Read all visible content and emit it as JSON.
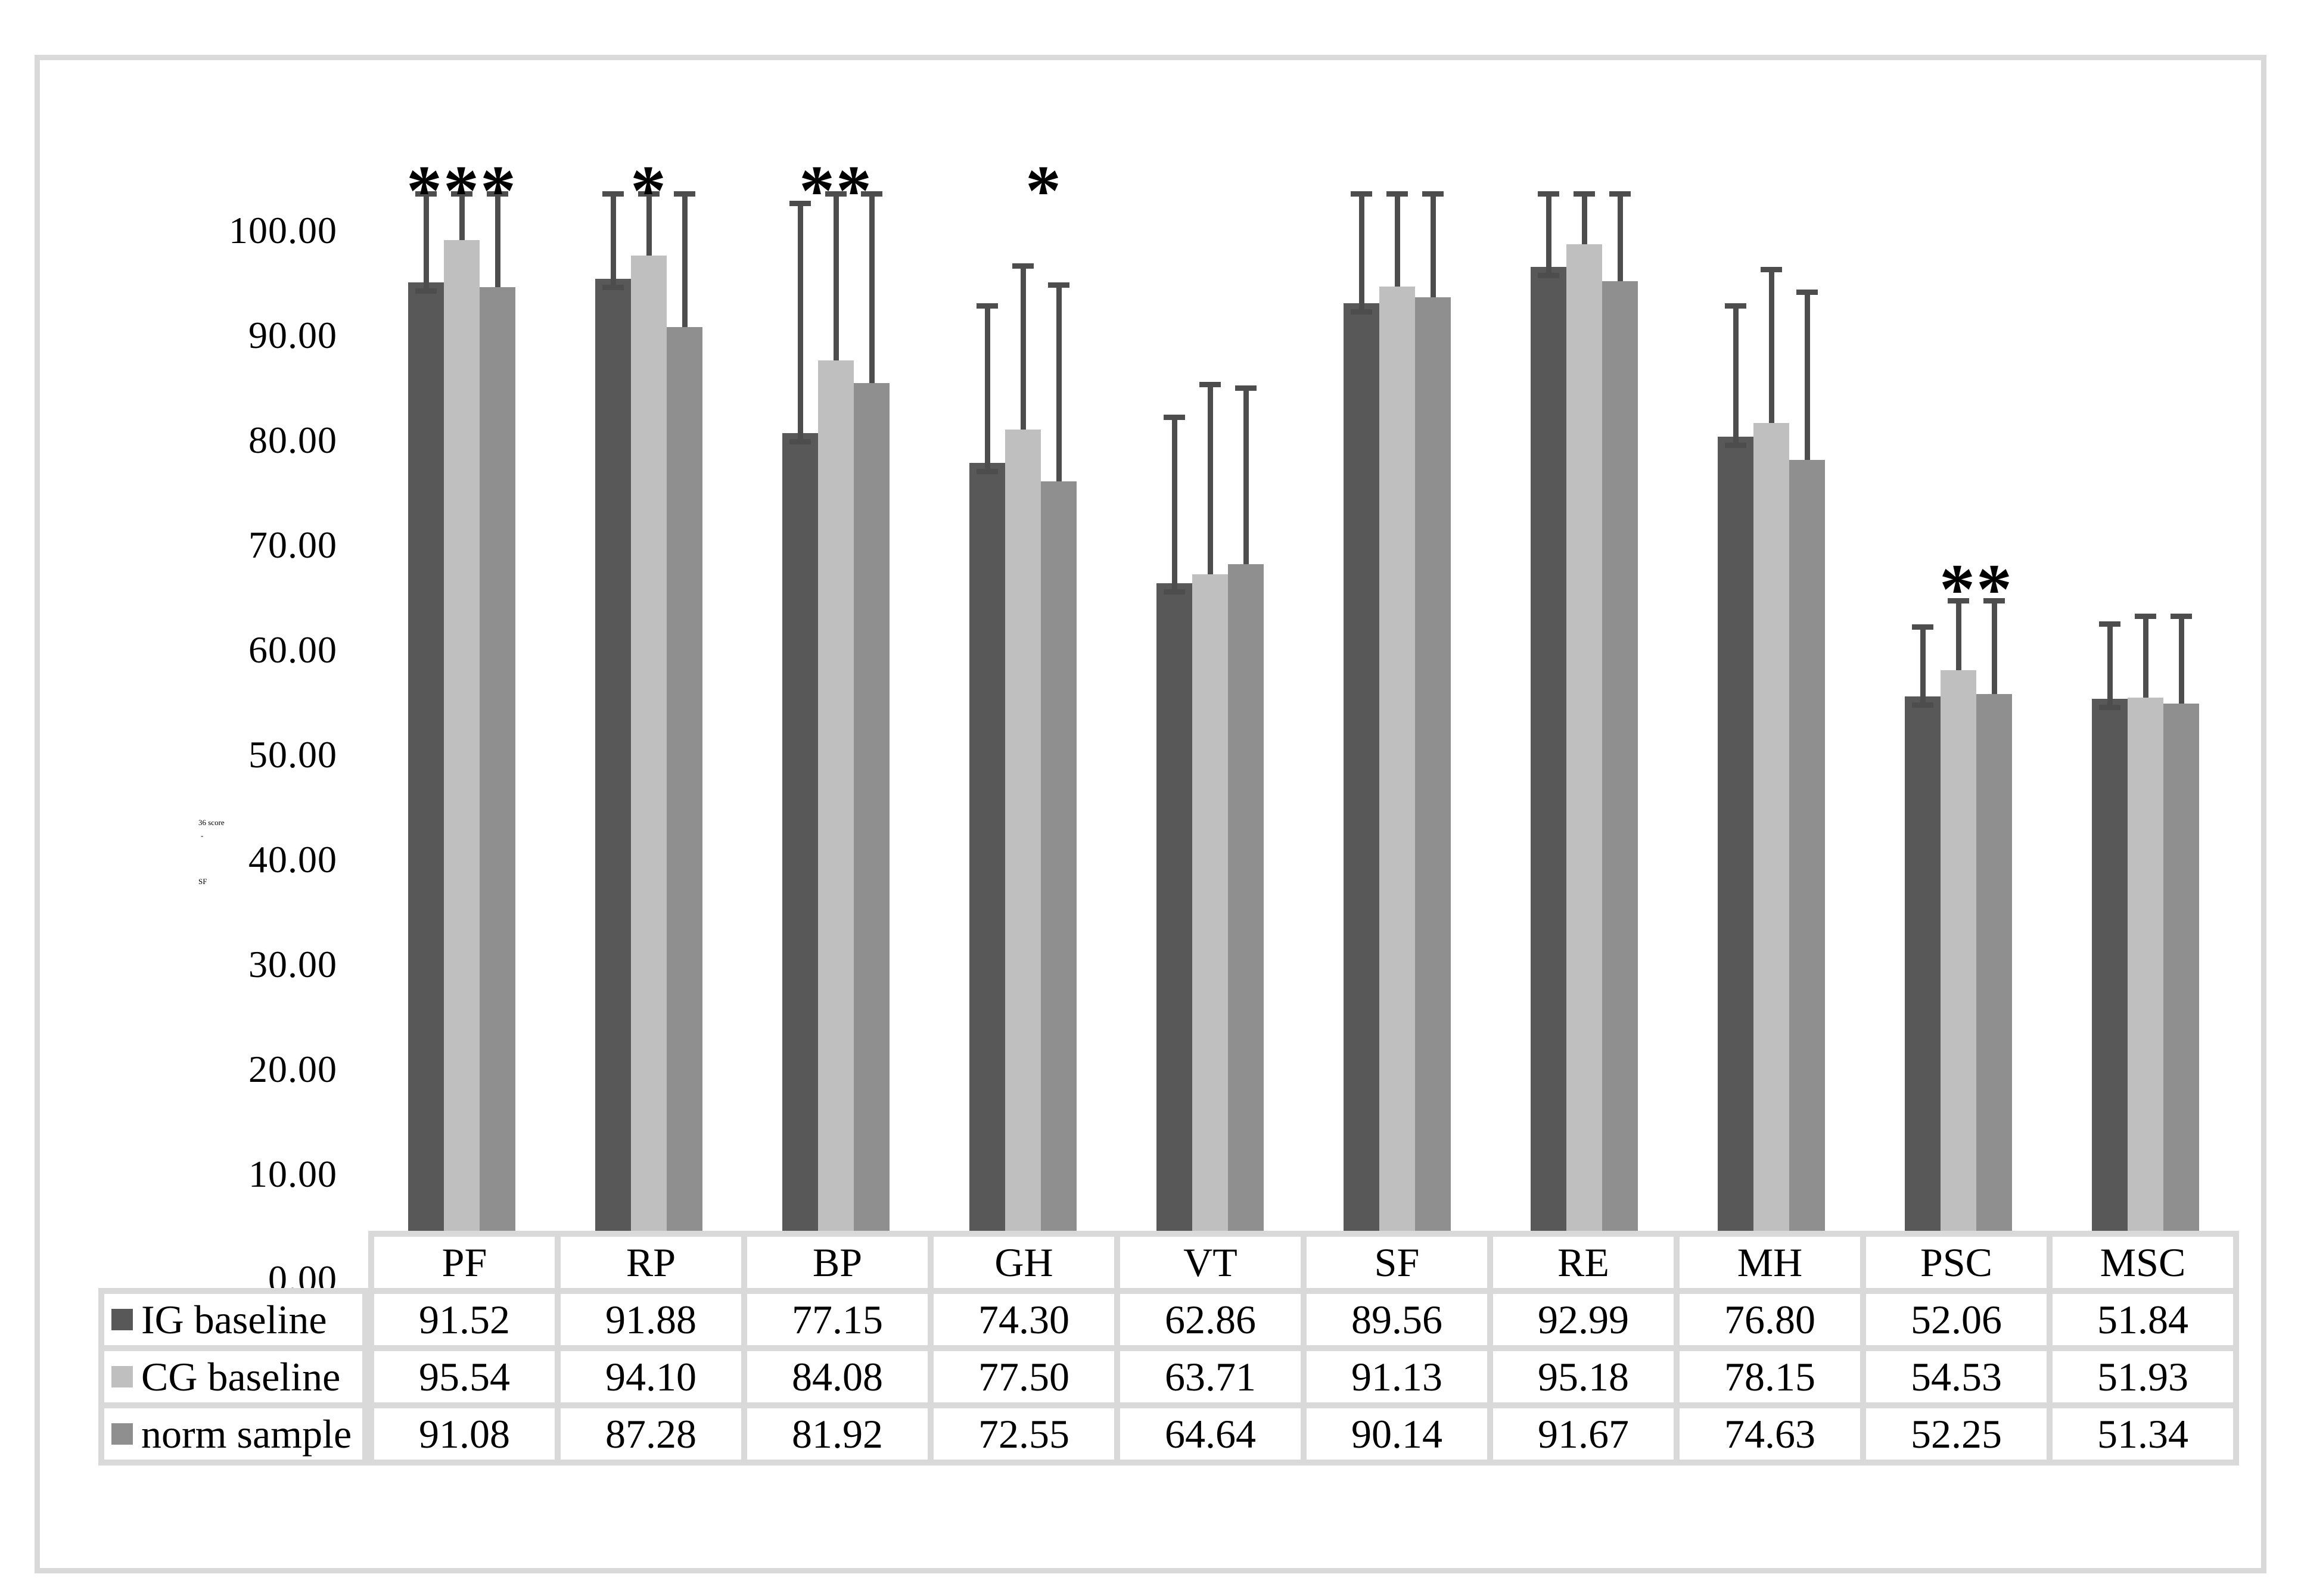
{
  "chart_data": {
    "type": "bar",
    "title": "",
    "categories": [
      "PF",
      "RP",
      "BP",
      "GH",
      "VT",
      "SF",
      "RE",
      "MH",
      "PSC",
      "MSC"
    ],
    "series": [
      {
        "name": "IG baseline",
        "color": "#585858",
        "values": [
          91.52,
          91.88,
          77.15,
          74.3,
          62.86,
          89.56,
          92.99,
          76.8,
          52.06,
          51.84
        ],
        "whisker_top": [
          100.0,
          100.0,
          99.1,
          89.3,
          78.7,
          100.0,
          100.0,
          89.3,
          58.7,
          59.0
        ]
      },
      {
        "name": "CG baseline",
        "color": "#bfbfbf",
        "values": [
          95.54,
          94.1,
          84.08,
          77.5,
          63.71,
          91.13,
          95.18,
          78.15,
          54.53,
          51.93
        ],
        "whisker_top": [
          100.0,
          100.0,
          100.0,
          93.1,
          81.8,
          100.0,
          100.0,
          92.8,
          61.2,
          59.7
        ]
      },
      {
        "name": "norm sample",
        "color": "#8f8f8f",
        "values": [
          91.08,
          87.28,
          81.92,
          72.55,
          64.64,
          90.14,
          91.67,
          74.63,
          52.25,
          51.34
        ],
        "whisker_top": [
          100.0,
          100.0,
          100.0,
          91.3,
          81.5,
          100.0,
          100.0,
          90.6,
          61.2,
          59.7
        ]
      }
    ],
    "error_bar_color": "#4d4d4d",
    "ylim": [
      0,
      104
    ],
    "grid": false,
    "legend_position": "table-left-rows",
    "y_ticks": [
      {
        "value": 100,
        "label": "100.00"
      },
      {
        "value": 90,
        "label": "90.00"
      },
      {
        "value": 80,
        "label": "80.00"
      },
      {
        "value": 70,
        "label": "70.00"
      },
      {
        "value": 60,
        "label": "60.00"
      },
      {
        "value": 50,
        "label": "50.00"
      },
      {
        "value": 40,
        "label": "40.00"
      },
      {
        "value": 30,
        "label": "30.00"
      },
      {
        "value": 20,
        "label": "20.00"
      },
      {
        "value": 10,
        "label": "10.00"
      },
      {
        "value": 0,
        "label": "0.00"
      }
    ],
    "y_axis_title_fragments": [
      "36 score",
      "-",
      "SF"
    ],
    "significance_markers": [
      {
        "category": "PF",
        "text": "***",
        "y_value": 102,
        "dx": 0
      },
      {
        "category": "RP",
        "text": "*",
        "y_value": 102,
        "dx": 0
      },
      {
        "category": "BP",
        "text": "**",
        "y_value": 102,
        "dx": 0
      },
      {
        "category": "GH",
        "text": "*",
        "y_value": 102,
        "dx": 35
      },
      {
        "category": "PSC",
        "text": "**",
        "y_value": 64,
        "dx": 30
      }
    ]
  },
  "table": {
    "column_headers": [
      "PF",
      "RP",
      "BP",
      "GH",
      "VT",
      "SF",
      "RE",
      "MH",
      "PSC",
      "MSC"
    ],
    "rows": [
      {
        "label": "IG baseline",
        "swatch_color": "#585858",
        "values": [
          "91.52",
          "91.88",
          "77.15",
          "74.30",
          "62.86",
          "89.56",
          "92.99",
          "76.80",
          "52.06",
          "51.84"
        ]
      },
      {
        "label": "CG baseline",
        "swatch_color": "#bfbfbf",
        "values": [
          "95.54",
          "94.10",
          "84.08",
          "77.50",
          "63.71",
          "91.13",
          "95.18",
          "78.15",
          "54.53",
          "51.93"
        ]
      },
      {
        "label": "norm sample",
        "swatch_color": "#8f8f8f",
        "values": [
          "91.08",
          "87.28",
          "81.92",
          "72.55",
          "64.64",
          "90.14",
          "91.67",
          "74.63",
          "52.25",
          "51.34"
        ]
      }
    ]
  },
  "colors": {
    "background": "#ffffff",
    "frame": "#d9d9d9",
    "table_border": "#d9d9d9",
    "text": "#000000"
  }
}
